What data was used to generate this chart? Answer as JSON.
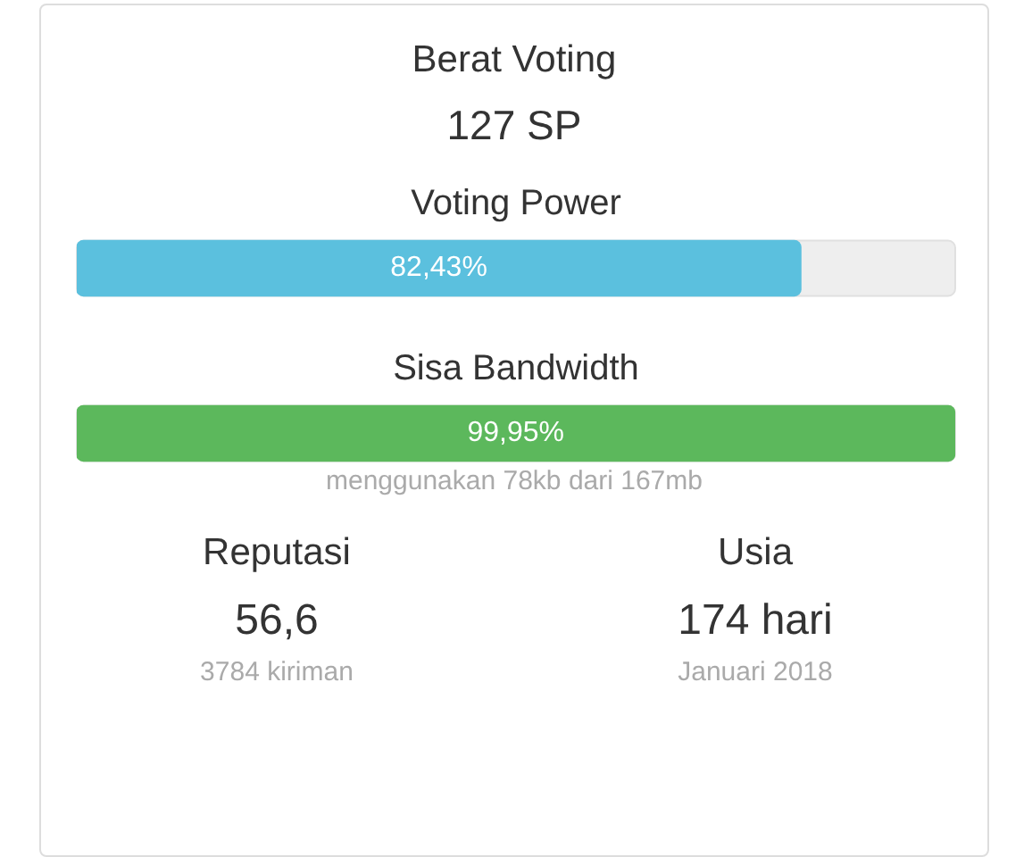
{
  "chart_data": {
    "type": "bar",
    "orientation": "horizontal",
    "title": "Berat Voting",
    "subtitle": "127 SP",
    "categories": [
      "Voting Power",
      "Sisa Bandwidth"
    ],
    "values": [
      82.43,
      99.95
    ],
    "colors": [
      "#5bc0de",
      "#5cb85c"
    ],
    "value_labels": [
      "82,43%",
      "99,95%"
    ],
    "xlim": [
      0,
      100
    ],
    "annotations": [
      "menggunakan 78kb dari 167mb",
      "Reputasi",
      "56,6",
      "3784 kiriman",
      "Usia",
      "174 hari",
      "Januari 2018"
    ]
  }
}
